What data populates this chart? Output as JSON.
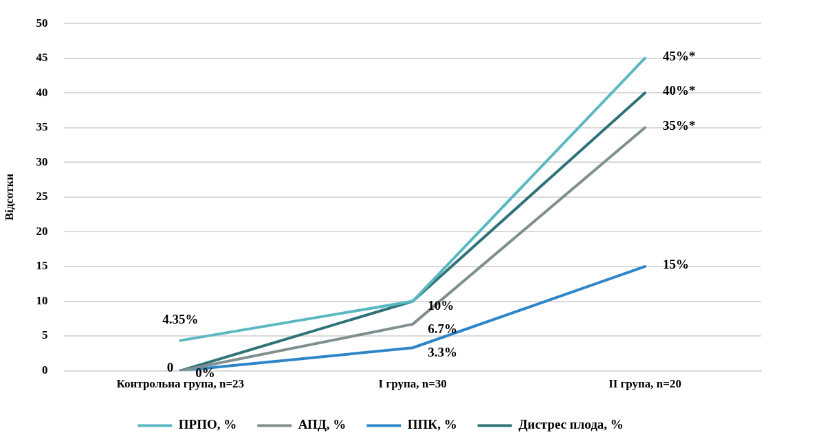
{
  "chart_data": {
    "type": "line",
    "ylabel": "Відсотки",
    "categories": [
      "Контрольна група, n=23",
      "I група, n=30",
      "II група, n=20"
    ],
    "ylim": [
      0,
      50
    ],
    "yticks": [
      0,
      5,
      10,
      15,
      20,
      25,
      30,
      35,
      40,
      45,
      50
    ],
    "grid": "y",
    "legend": "bottom",
    "marker": "none",
    "line_style": "solid",
    "series": [
      {
        "name": "ПРПО, %",
        "color": "#5bb8c1",
        "values": [
          4.35,
          10,
          45
        ],
        "value_labels": [
          "4.35%",
          null,
          "45%*"
        ]
      },
      {
        "name": "АПД, %",
        "color": "#7f8f8f",
        "values": [
          0,
          6.7,
          35
        ],
        "value_labels": [
          "0",
          "6.7%",
          "35%*"
        ]
      },
      {
        "name": "ППК, %",
        "color": "#2e86c8",
        "values": [
          0,
          3.3,
          15
        ],
        "value_labels": [
          null,
          "3.3%",
          "15%"
        ]
      },
      {
        "name": "Дистрес плода, %",
        "color": "#2f7378",
        "values": [
          0,
          10,
          40
        ],
        "value_labels": [
          "0%",
          "10%",
          "40%*"
        ]
      }
    ]
  }
}
